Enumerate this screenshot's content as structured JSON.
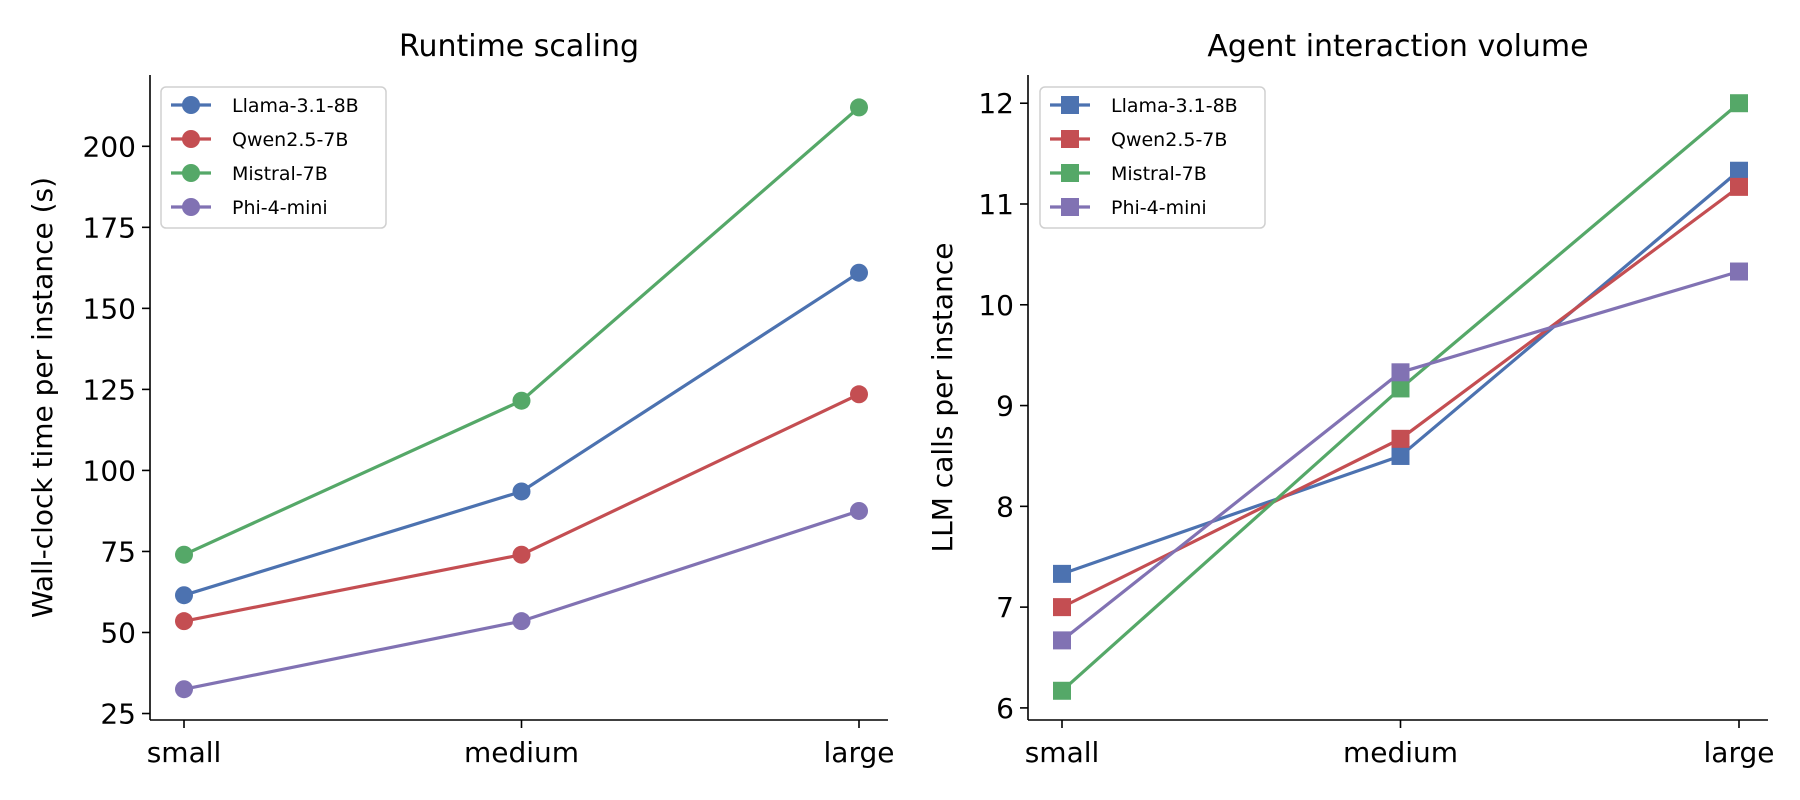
{
  "chart_data": [
    {
      "type": "line",
      "title": "Runtime scaling",
      "xlabel": "",
      "ylabel": "Wall-clock time per instance (s)",
      "categories": [
        "small",
        "medium",
        "large"
      ],
      "ylim": [
        23,
        222
      ],
      "yticks": [
        25,
        50,
        75,
        100,
        125,
        150,
        175,
        200
      ],
      "marker": "circle",
      "grid": false,
      "legend": "top-left",
      "series": [
        {
          "name": "Llama-3.1-8B",
          "color": "#4c72b0",
          "values": [
            61.5,
            93.5,
            161
          ]
        },
        {
          "name": "Qwen2.5-7B",
          "color": "#c44e52",
          "values": [
            53.5,
            74,
            123.5
          ]
        },
        {
          "name": "Mistral-7B",
          "color": "#55a868",
          "values": [
            74,
            121.5,
            212
          ]
        },
        {
          "name": "Phi-4-mini",
          "color": "#8172b3",
          "values": [
            32.5,
            53.5,
            87.5
          ]
        }
      ]
    },
    {
      "type": "line",
      "title": "Agent interaction volume",
      "xlabel": "",
      "ylabel": "LLM calls per instance",
      "categories": [
        "small",
        "medium",
        "large"
      ],
      "ylim": [
        5.88,
        12.28
      ],
      "yticks": [
        6,
        7,
        8,
        9,
        10,
        11,
        12
      ],
      "marker": "square",
      "grid": false,
      "legend": "top-left",
      "series": [
        {
          "name": "Llama-3.1-8B",
          "color": "#4c72b0",
          "values": [
            7.33,
            8.5,
            11.33
          ]
        },
        {
          "name": "Qwen2.5-7B",
          "color": "#c44e52",
          "values": [
            7.0,
            8.67,
            11.17
          ]
        },
        {
          "name": "Mistral-7B",
          "color": "#55a868",
          "values": [
            6.17,
            9.17,
            12.0
          ]
        },
        {
          "name": "Phi-4-mini",
          "color": "#8172b3",
          "values": [
            6.67,
            9.33,
            10.33
          ]
        }
      ]
    }
  ]
}
